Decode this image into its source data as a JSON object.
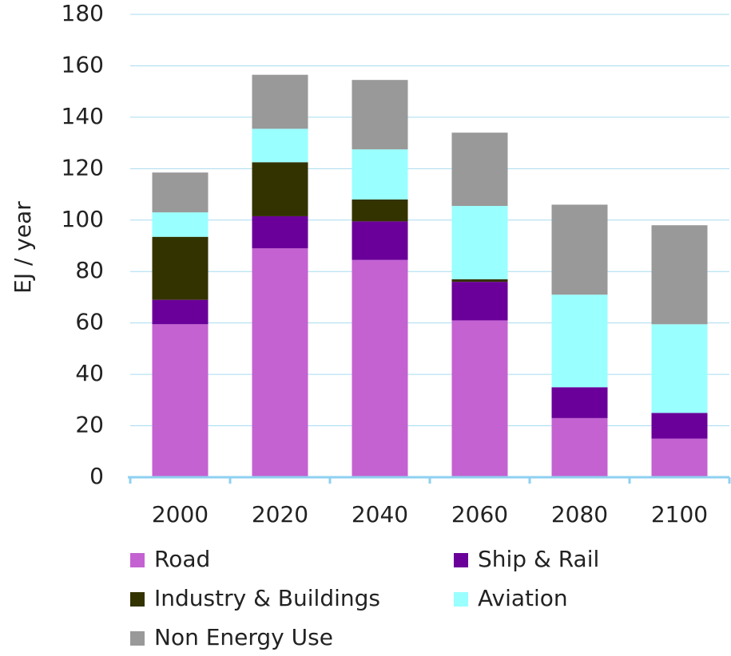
{
  "chart_data": {
    "type": "stacked_bar",
    "y_label": "EJ / year",
    "categories": [
      "2000",
      "2020",
      "2040",
      "2060",
      "2080",
      "2100"
    ],
    "series": [
      {
        "name": "Road",
        "color": "#c462d2",
        "values": [
          59.5,
          89,
          84.5,
          61,
          23,
          15
        ]
      },
      {
        "name": "Ship & Rail",
        "color": "#6a0099",
        "values": [
          9.5,
          12.5,
          15,
          15,
          12,
          10
        ]
      },
      {
        "name": "Industry & Buildings",
        "color": "#333300",
        "values": [
          24.5,
          21,
          8.5,
          1,
          0,
          0
        ]
      },
      {
        "name": "Aviation",
        "color": "#99ffff",
        "values": [
          9.5,
          13,
          19.5,
          28.5,
          36,
          34.5
        ]
      },
      {
        "name": "Non Energy Use",
        "color": "#999999",
        "values": [
          15.5,
          21,
          27,
          28.5,
          35,
          38.5
        ]
      }
    ],
    "ylim": [
      0,
      180
    ],
    "yticks": [
      0,
      20,
      40,
      60,
      80,
      100,
      120,
      140,
      160,
      180
    ],
    "grid": true
  }
}
